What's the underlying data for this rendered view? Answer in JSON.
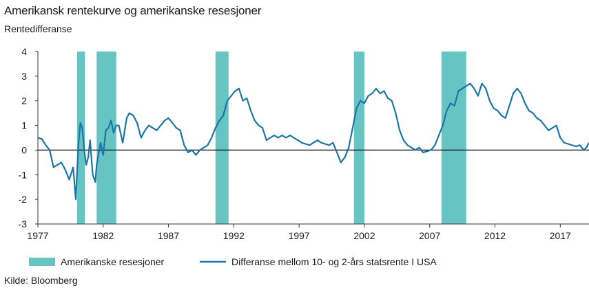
{
  "chart_data": {
    "type": "line",
    "title": "Amerikansk rentekurve og amerikanske resesjoner",
    "ylabel": "Rentedifferanse",
    "source": "Kilde: Bloomberg",
    "xlim": [
      1977.0,
      2019.2
    ],
    "ylim": [
      -3,
      4
    ],
    "yticks": [
      -3,
      -2,
      -1,
      0,
      1,
      2,
      3,
      4
    ],
    "xticks": [
      1977,
      1982,
      1987,
      1992,
      1997,
      2002,
      2007,
      2012,
      2017
    ],
    "grid": false,
    "legend": "bottom",
    "colors": {
      "recession": "#66c4c3",
      "series": "#1a74a8"
    },
    "recessions": {
      "name": "Amerikanske resesjoner",
      "periods": [
        [
          1980.0,
          1980.6
        ],
        [
          1981.5,
          1983.0
        ],
        [
          1990.6,
          1991.6
        ],
        [
          2001.2,
          2002.0
        ],
        [
          2007.9,
          2009.8
        ]
      ]
    },
    "series": [
      {
        "name": "Differanse mellom 10- og 2-års statsrente I USA",
        "x": [
          1977.0,
          1977.3,
          1977.6,
          1977.9,
          1978.2,
          1978.5,
          1978.8,
          1979.1,
          1979.4,
          1979.7,
          1979.9,
          1980.1,
          1980.25,
          1980.4,
          1980.55,
          1980.7,
          1980.85,
          1981.0,
          1981.2,
          1981.4,
          1981.5,
          1981.6,
          1981.8,
          1982.0,
          1982.2,
          1982.4,
          1982.6,
          1982.8,
          1983.0,
          1983.2,
          1983.5,
          1983.8,
          1984.0,
          1984.3,
          1984.6,
          1984.9,
          1985.2,
          1985.5,
          1985.8,
          1986.1,
          1986.4,
          1986.7,
          1987.0,
          1987.3,
          1987.6,
          1987.9,
          1988.2,
          1988.5,
          1988.8,
          1989.1,
          1989.4,
          1989.7,
          1990.0,
          1990.3,
          1990.6,
          1990.9,
          1991.2,
          1991.5,
          1991.8,
          1992.1,
          1992.4,
          1992.7,
          1993.0,
          1993.3,
          1993.6,
          1993.9,
          1994.2,
          1994.5,
          1994.8,
          1995.1,
          1995.4,
          1995.7,
          1996.0,
          1996.3,
          1996.6,
          1996.9,
          1997.2,
          1997.5,
          1997.8,
          1998.1,
          1998.4,
          1998.7,
          1999.0,
          1999.3,
          1999.6,
          1999.9,
          2000.2,
          2000.5,
          2000.8,
          2001.1,
          2001.4,
          2001.7,
          2002.0,
          2002.3,
          2002.6,
          2002.9,
          2003.2,
          2003.5,
          2003.8,
          2004.1,
          2004.4,
          2004.7,
          2005.0,
          2005.3,
          2005.6,
          2005.9,
          2006.2,
          2006.5,
          2006.8,
          2007.1,
          2007.4,
          2007.7,
          2008.0,
          2008.3,
          2008.6,
          2008.9,
          2009.2,
          2009.5,
          2009.8,
          2010.1,
          2010.4,
          2010.7,
          2011.0,
          2011.3,
          2011.6,
          2011.9,
          2012.2,
          2012.5,
          2012.8,
          2013.1,
          2013.4,
          2013.7,
          2014.0,
          2014.3,
          2014.6,
          2014.9,
          2015.2,
          2015.5,
          2015.8,
          2016.1,
          2016.4,
          2016.7,
          2017.0,
          2017.3,
          2017.6,
          2017.9,
          2018.2,
          2018.5,
          2018.8,
          2019.0,
          2019.2
        ],
        "values": [
          0.5,
          0.45,
          0.2,
          0.0,
          -0.7,
          -0.6,
          -0.5,
          -0.8,
          -1.2,
          -0.7,
          -2.0,
          0.2,
          1.1,
          0.9,
          0.0,
          -0.6,
          -0.3,
          0.4,
          -1.0,
          -1.3,
          -0.6,
          -0.3,
          0.3,
          -0.2,
          0.8,
          0.9,
          1.2,
          0.7,
          1.0,
          1.0,
          0.3,
          1.3,
          1.5,
          1.4,
          1.1,
          0.5,
          0.8,
          1.0,
          0.9,
          0.8,
          1.0,
          1.2,
          1.3,
          1.1,
          0.9,
          0.8,
          0.2,
          -0.1,
          0.0,
          -0.2,
          0.0,
          0.1,
          0.2,
          0.5,
          0.9,
          1.2,
          1.4,
          2.0,
          2.2,
          2.4,
          2.5,
          2.0,
          2.1,
          1.6,
          1.2,
          1.0,
          0.9,
          0.4,
          0.5,
          0.6,
          0.5,
          0.6,
          0.5,
          0.6,
          0.5,
          0.4,
          0.3,
          0.25,
          0.2,
          0.3,
          0.4,
          0.3,
          0.25,
          0.2,
          0.3,
          -0.1,
          -0.5,
          -0.3,
          0.1,
          0.9,
          1.7,
          2.0,
          1.9,
          2.2,
          2.3,
          2.5,
          2.3,
          2.4,
          2.1,
          2.0,
          1.5,
          0.8,
          0.4,
          0.2,
          0.1,
          0.0,
          0.1,
          -0.1,
          -0.05,
          0.0,
          0.2,
          0.6,
          1.0,
          1.6,
          1.9,
          1.8,
          2.4,
          2.5,
          2.6,
          2.7,
          2.5,
          2.2,
          2.7,
          2.5,
          2.0,
          1.7,
          1.6,
          1.4,
          1.3,
          1.8,
          2.3,
          2.5,
          2.3,
          1.9,
          1.6,
          1.5,
          1.3,
          1.2,
          1.0,
          0.8,
          0.9,
          1.0,
          0.5,
          0.3,
          0.25,
          0.2,
          0.15,
          0.2,
          0.0,
          0.1,
          0.3
        ]
      }
    ]
  }
}
